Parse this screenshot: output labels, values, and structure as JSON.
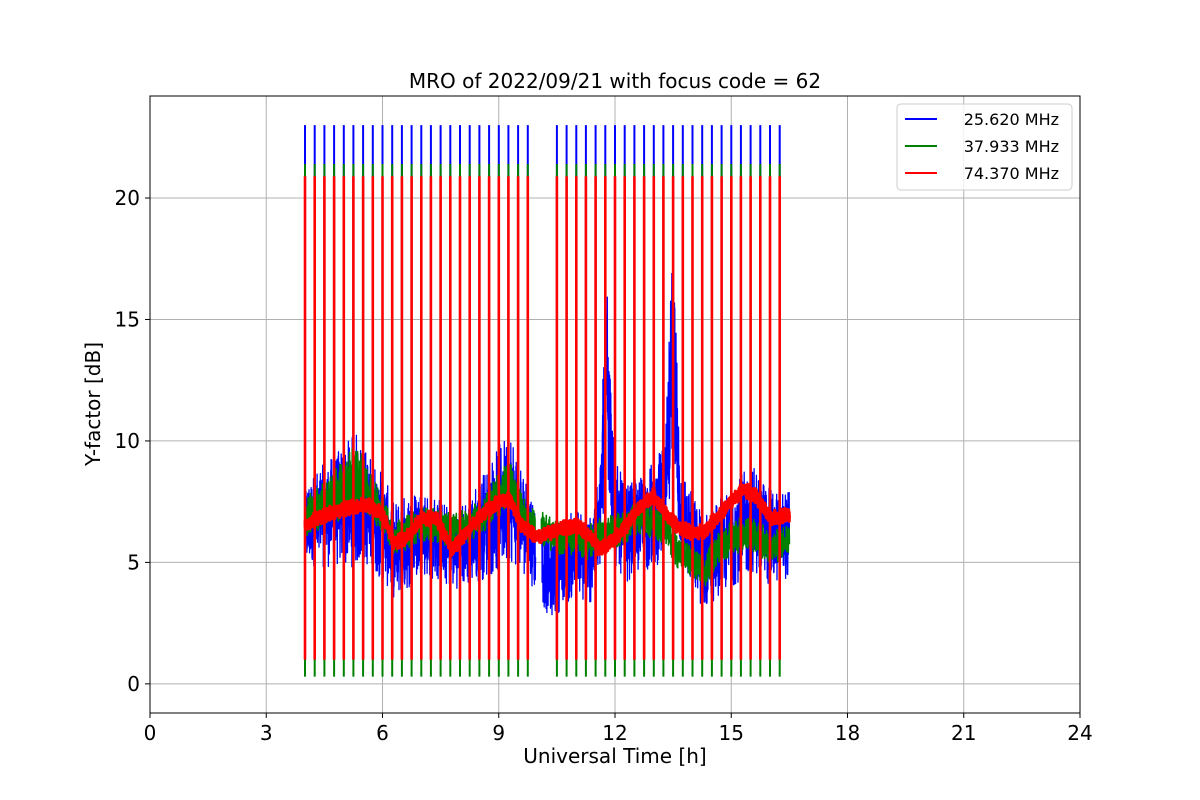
{
  "chart_data": {
    "type": "line",
    "title": "MRO of 2022/09/21 with focus code = 62",
    "xlabel": "Universal Time [h]",
    "ylabel": "Y-factor [dB]",
    "xlim": [
      0,
      24
    ],
    "ylim": [
      -1.2,
      24.2
    ],
    "xticks": [
      0,
      3,
      6,
      9,
      12,
      15,
      18,
      21,
      24
    ],
    "yticks": [
      0,
      5,
      10,
      15,
      20
    ],
    "grid": true,
    "legend_position": "top-right",
    "calibration_pulses": {
      "times_h": [
        4.0,
        4.25,
        4.5,
        4.75,
        5.0,
        5.25,
        5.5,
        5.75,
        6.0,
        6.25,
        6.5,
        6.75,
        7.0,
        7.25,
        7.5,
        7.75,
        8.0,
        8.25,
        8.5,
        8.75,
        9.0,
        9.25,
        9.5,
        9.75,
        10.5,
        10.75,
        11.0,
        11.25,
        11.5,
        11.75,
        12.0,
        12.25,
        12.5,
        12.75,
        13.0,
        13.25,
        13.5,
        13.75,
        14.0,
        14.25,
        14.5,
        14.75,
        15.0,
        15.25,
        15.5,
        15.75,
        16.0,
        16.25
      ],
      "high_db": [
        23.0,
        21.4,
        20.9
      ],
      "low_db": [
        4.5,
        0.3,
        1.0
      ]
    },
    "series": [
      {
        "name": "25.620 MHz",
        "color": "#0000ff",
        "x": [
          4.0,
          4.3,
          4.6,
          5.0,
          5.3,
          5.6,
          6.0,
          6.3,
          6.6,
          7.0,
          7.4,
          7.8,
          8.2,
          8.6,
          9.0,
          9.3,
          9.6,
          10.0,
          10.3,
          10.6,
          11.0,
          11.3,
          11.6,
          11.8,
          12.0,
          12.3,
          12.6,
          13.0,
          13.3,
          13.5,
          13.7,
          14.0,
          14.3,
          14.6,
          15.0,
          15.3,
          15.6,
          16.0,
          16.5
        ],
        "mean": [
          6.5,
          6.8,
          7.0,
          7.3,
          7.6,
          7.2,
          6.5,
          5.5,
          5.8,
          6.3,
          6.0,
          5.5,
          5.8,
          6.5,
          7.2,
          7.8,
          6.8,
          5.5,
          4.5,
          4.8,
          5.5,
          5.0,
          6.5,
          13.0,
          7.0,
          6.2,
          6.5,
          7.0,
          7.5,
          13.5,
          7.0,
          5.8,
          5.0,
          5.5,
          6.0,
          6.5,
          6.8,
          6.0,
          6.2
        ],
        "spread": [
          1.8,
          2.0,
          2.2,
          2.5,
          2.8,
          2.4,
          2.2,
          2.0,
          2.0,
          1.8,
          1.8,
          1.6,
          1.8,
          2.2,
          2.6,
          2.8,
          2.2,
          1.8,
          1.8,
          1.8,
          1.8,
          2.0,
          2.2,
          5.0,
          2.2,
          2.0,
          2.0,
          2.2,
          2.4,
          5.5,
          2.2,
          2.0,
          2.0,
          2.0,
          2.0,
          2.2,
          2.2,
          2.0,
          1.8
        ]
      },
      {
        "name": "37.933 MHz",
        "color": "#008000",
        "x": [
          4.0,
          4.3,
          4.6,
          5.0,
          5.3,
          5.6,
          6.0,
          6.3,
          6.6,
          7.0,
          7.4,
          7.8,
          8.2,
          8.6,
          9.0,
          9.3,
          9.6,
          10.0,
          10.3,
          10.6,
          11.0,
          11.3,
          11.6,
          12.0,
          12.3,
          12.6,
          13.0,
          13.3,
          13.6,
          14.0,
          14.3,
          14.6,
          15.0,
          15.3,
          15.6,
          16.0,
          16.5
        ],
        "mean": [
          6.8,
          7.2,
          7.5,
          8.0,
          8.5,
          8.0,
          7.0,
          6.0,
          6.2,
          6.6,
          6.5,
          6.3,
          6.5,
          7.0,
          7.8,
          8.2,
          7.0,
          6.5,
          6.2,
          6.0,
          6.0,
          5.8,
          6.2,
          6.3,
          6.5,
          6.8,
          6.8,
          6.5,
          5.5,
          5.0,
          4.5,
          5.5,
          6.0,
          6.2,
          6.2,
          5.5,
          6.0
        ],
        "spread": [
          0.8,
          0.9,
          1.0,
          1.2,
          1.5,
          1.0,
          0.8,
          0.7,
          0.7,
          0.7,
          0.7,
          0.7,
          0.7,
          0.8,
          0.9,
          1.0,
          0.8,
          0.7,
          0.7,
          0.7,
          0.7,
          0.7,
          0.7,
          0.7,
          0.7,
          0.7,
          0.8,
          0.8,
          0.7,
          0.7,
          0.7,
          0.7,
          0.7,
          0.8,
          0.8,
          0.7,
          0.7
        ]
      },
      {
        "name": "74.370 MHz",
        "color": "#ff0000",
        "x": [
          4.0,
          4.3,
          4.6,
          5.0,
          5.3,
          5.6,
          6.0,
          6.3,
          6.6,
          7.0,
          7.4,
          7.8,
          8.2,
          8.6,
          9.0,
          9.3,
          9.6,
          10.0,
          10.3,
          10.6,
          11.0,
          11.3,
          11.6,
          12.0,
          12.3,
          12.6,
          13.0,
          13.3,
          13.6,
          14.0,
          14.3,
          14.6,
          15.0,
          15.3,
          15.6,
          16.0,
          16.5
        ],
        "mean": [
          6.5,
          6.8,
          7.0,
          7.2,
          7.3,
          7.4,
          7.0,
          5.8,
          6.0,
          6.8,
          6.8,
          5.5,
          6.3,
          7.0,
          7.5,
          7.6,
          6.5,
          6.0,
          6.2,
          6.4,
          6.5,
          6.2,
          5.5,
          6.0,
          6.5,
          7.2,
          7.8,
          7.0,
          6.5,
          6.2,
          6.3,
          6.8,
          7.5,
          8.0,
          7.8,
          6.8,
          7.0
        ],
        "spread": [
          0.3,
          0.3,
          0.3,
          0.3,
          0.3,
          0.3,
          0.3,
          0.3,
          0.3,
          0.3,
          0.3,
          0.3,
          0.3,
          0.3,
          0.3,
          0.3,
          0.3,
          0.3,
          0.3,
          0.3,
          0.3,
          0.3,
          0.3,
          0.3,
          0.3,
          0.3,
          0.3,
          0.3,
          0.3,
          0.3,
          0.3,
          0.3,
          0.3,
          0.3,
          0.3,
          0.3,
          0.3
        ]
      }
    ]
  }
}
